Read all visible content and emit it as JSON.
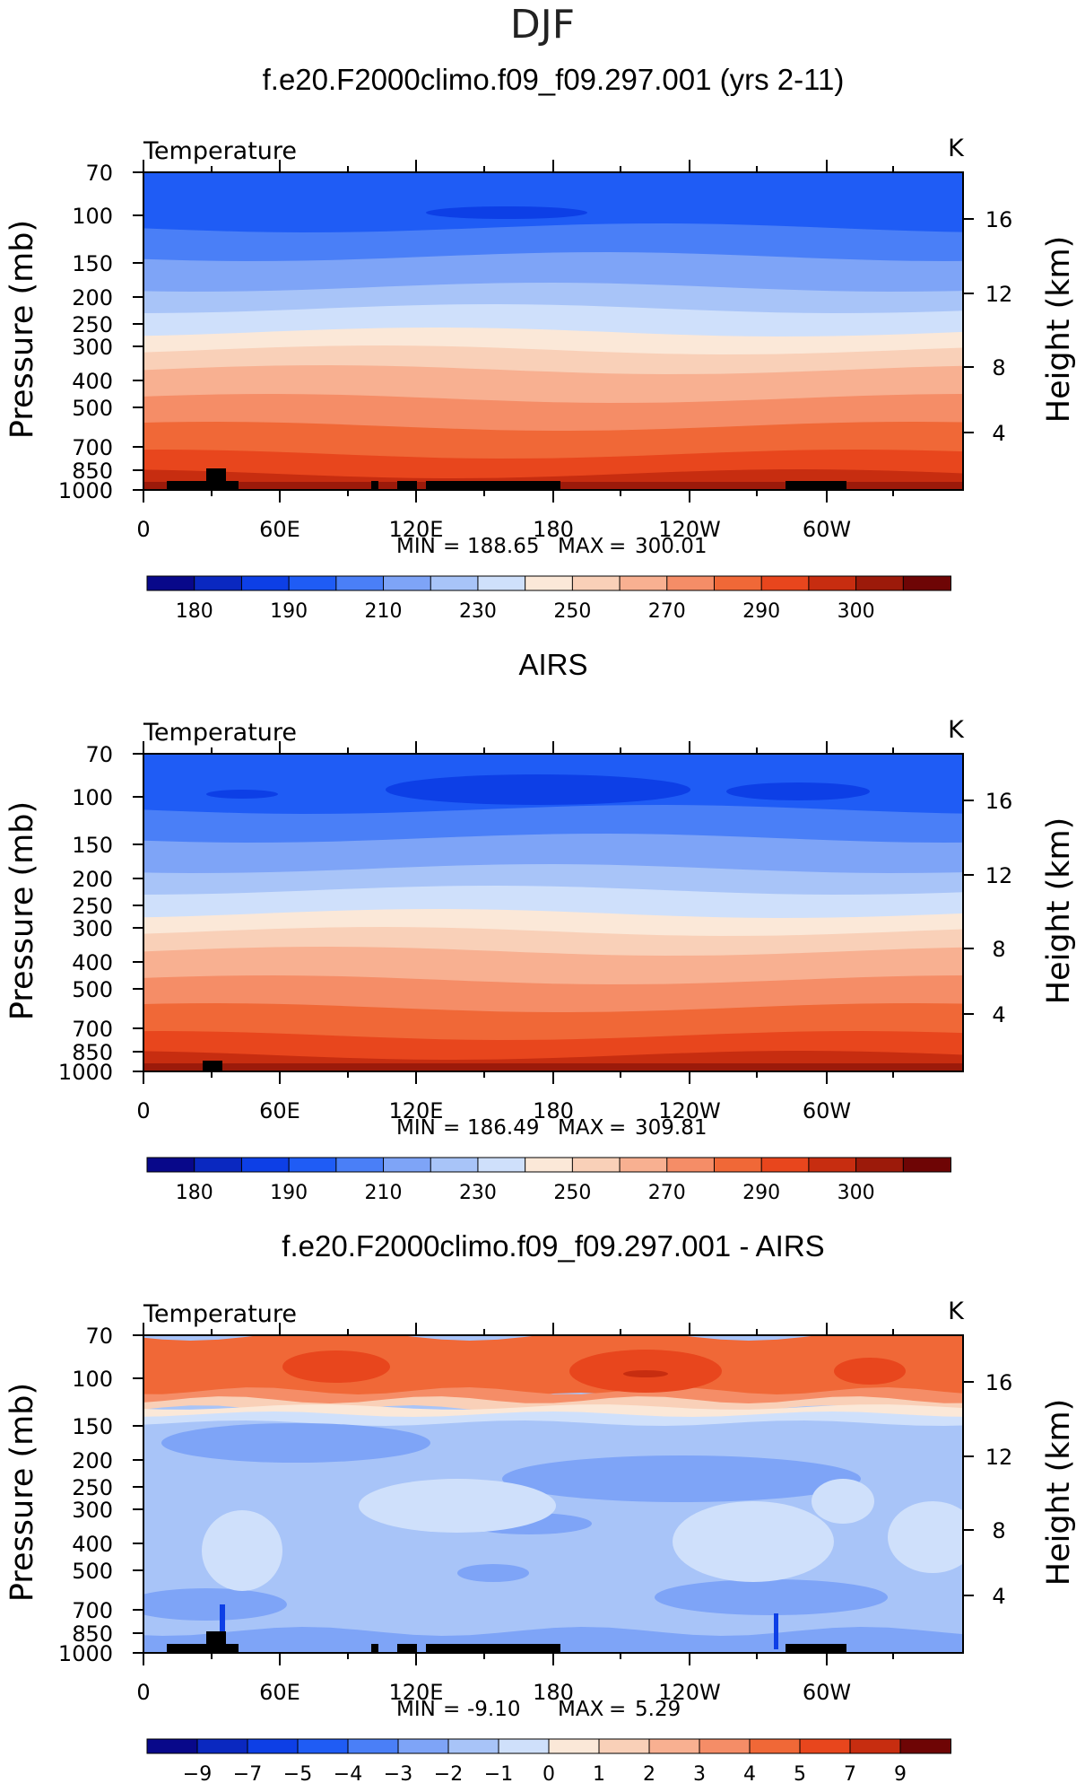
{
  "season_title": "DJF",
  "colors": {
    "abs_levels": [
      "#08088a",
      "#0a28c0",
      "#0d3fe6",
      "#1f5cf5",
      "#4a7ff7",
      "#7ea4f7",
      "#a8c4f8",
      "#cfe0fb",
      "#fbe8d8",
      "#f9d0b8",
      "#f8b091",
      "#f58d67",
      "#f06837",
      "#e8461d",
      "#c72d10",
      "#9c1a0a",
      "#6e0505"
    ],
    "diff_levels": [
      "#08088a",
      "#0a28c0",
      "#0d3fe6",
      "#1f5cf5",
      "#4a7ff7",
      "#7ea4f7",
      "#a8c4f8",
      "#cfe0fb",
      "#fbe8d8",
      "#f9d0b8",
      "#f8b091",
      "#f58d67",
      "#f06837",
      "#e8461d",
      "#c72d10",
      "#6e0505"
    ]
  },
  "panels": [
    {
      "title": "f.e20.F2000climo.f09_f09.297.001 (yrs 2-11)",
      "variable": "Temperature",
      "units": "K",
      "min_label": "MIN",
      "min_value": "188.65",
      "max_label": "MAX",
      "max_value": "300.01",
      "kind": "model"
    },
    {
      "title": "AIRS",
      "variable": "Temperature",
      "units": "K",
      "min_label": "MIN",
      "min_value": "186.49",
      "max_label": "MAX",
      "max_value": "309.81",
      "kind": "obs"
    },
    {
      "title": "f.e20.F2000climo.f09_f09.297.001 - AIRS",
      "variable": "Temperature",
      "units": "K",
      "min_label": "MIN",
      "min_value": "-9.10",
      "max_label": "MAX",
      "max_value": "5.29",
      "kind": "diff"
    }
  ],
  "chart_data": [
    {
      "type": "heatmap",
      "title": "f.e20.F2000climo.f09_f09.297.001 (yrs 2-11)",
      "variable": "Temperature",
      "units": "K",
      "ylabel_left": "Pressure (mb)",
      "ylabel_right": "Height (km)",
      "x_ticks": [
        "0",
        "60E",
        "120E",
        "180",
        "120W",
        "60W"
      ],
      "y_ticks": [
        "70",
        "100",
        "150",
        "200",
        "250",
        "300",
        "400",
        "500",
        "700",
        "850",
        "1000"
      ],
      "y2_ticks": [
        "16",
        "12",
        "8",
        "4"
      ],
      "contour_levels": [
        180,
        185,
        190,
        200,
        210,
        220,
        230,
        240,
        250,
        260,
        270,
        280,
        290,
        295,
        300,
        305
      ],
      "colorbar_labels": [
        "180",
        "190",
        "210",
        "230",
        "250",
        "270",
        "290",
        "300"
      ],
      "min": 188.65,
      "max": 300.01
    },
    {
      "type": "heatmap",
      "title": "AIRS",
      "variable": "Temperature",
      "units": "K",
      "ylabel_left": "Pressure (mb)",
      "ylabel_right": "Height (km)",
      "x_ticks": [
        "0",
        "60E",
        "120E",
        "180",
        "120W",
        "60W"
      ],
      "y_ticks": [
        "70",
        "100",
        "150",
        "200",
        "250",
        "300",
        "400",
        "500",
        "700",
        "850",
        "1000"
      ],
      "y2_ticks": [
        "16",
        "12",
        "8",
        "4"
      ],
      "contour_levels": [
        180,
        185,
        190,
        200,
        210,
        220,
        230,
        240,
        250,
        260,
        270,
        280,
        290,
        295,
        300,
        305
      ],
      "colorbar_labels": [
        "180",
        "190",
        "210",
        "230",
        "250",
        "270",
        "290",
        "300"
      ],
      "min": 186.49,
      "max": 309.81
    },
    {
      "type": "heatmap",
      "title": "f.e20.F2000climo.f09_f09.297.001 - AIRS",
      "variable": "Temperature",
      "units": "K",
      "ylabel_left": "Pressure (mb)",
      "ylabel_right": "Height (km)",
      "x_ticks": [
        "0",
        "60E",
        "120E",
        "180",
        "120W",
        "60W"
      ],
      "y_ticks": [
        "70",
        "100",
        "150",
        "200",
        "250",
        "300",
        "400",
        "500",
        "700",
        "850",
        "1000"
      ],
      "y2_ticks": [
        "16",
        "12",
        "8",
        "4"
      ],
      "contour_levels": [
        -9,
        -7,
        -5,
        -4,
        -3,
        -2,
        -1,
        0,
        1,
        2,
        3,
        4,
        5,
        7,
        9
      ],
      "colorbar_labels": [
        "-9",
        "-7",
        "-5",
        "-4",
        "-3",
        "-2",
        "-1",
        "0",
        "1",
        "2",
        "3",
        "4",
        "5",
        "7",
        "9"
      ],
      "min": -9.1,
      "max": 5.29
    }
  ]
}
